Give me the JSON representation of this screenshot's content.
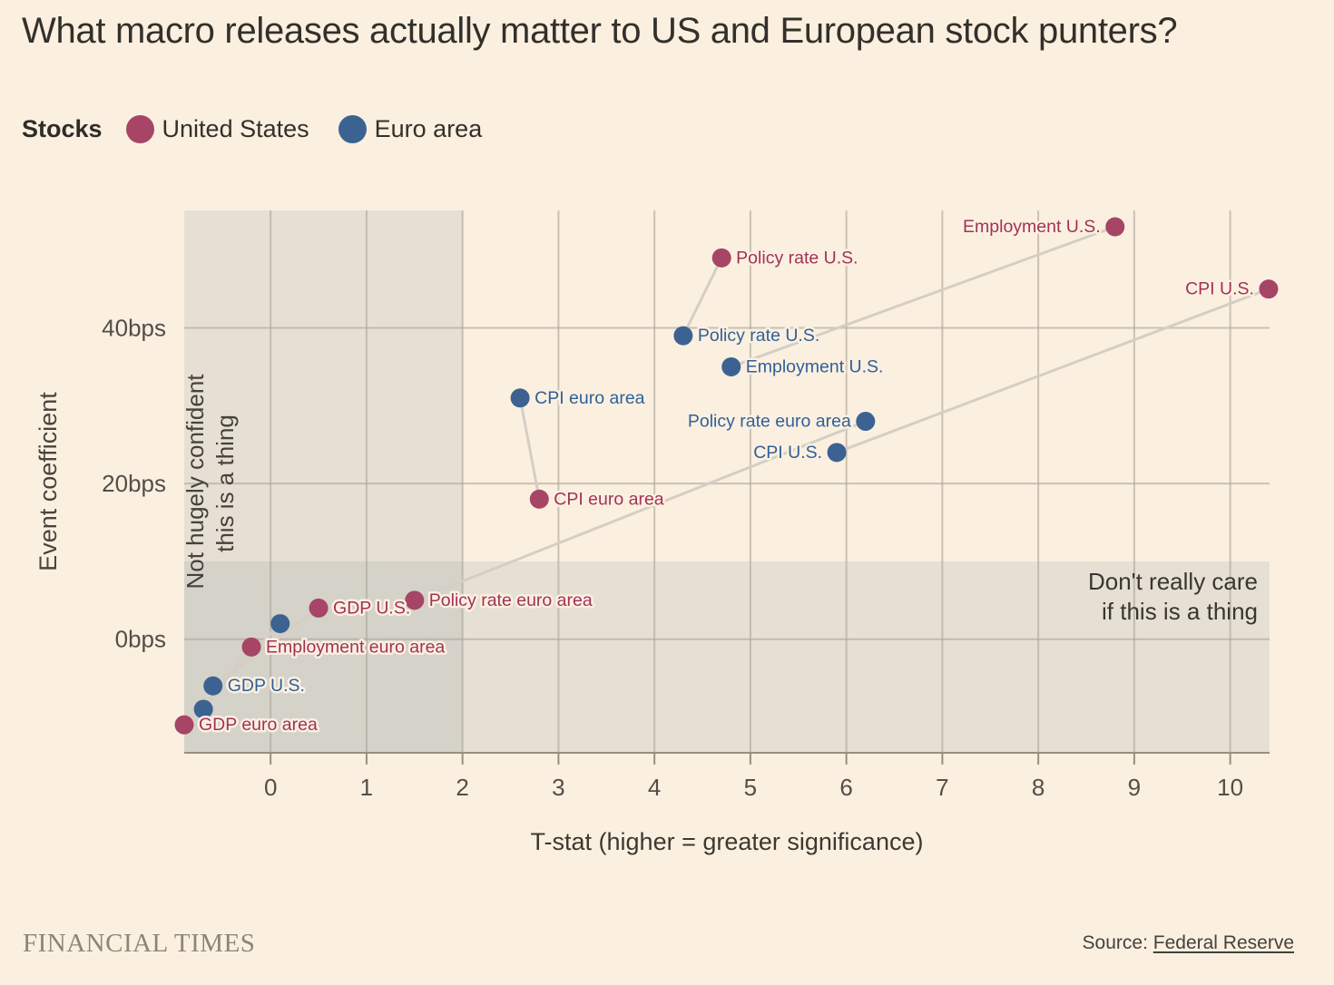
{
  "page": {
    "title": "What macro releases actually matter to US and European stock punters?"
  },
  "legend": {
    "title": "Stocks"
  },
  "footer": {
    "brand": "FINANCIAL TIMES",
    "source_prefix": "Source:",
    "source_link": "Federal Reserve"
  },
  "chart_data": {
    "type": "scatter",
    "title": "What macro releases actually matter to US and European stock punters?",
    "xlabel": "T-stat (higher = greater significance)",
    "ylabel": "Event coefficient",
    "xlim": [
      -0.9,
      10.41
    ],
    "ylim": [
      -14.6,
      55.1
    ],
    "grid": true,
    "legend_position": "top-left",
    "x_ticks": [
      0,
      1,
      2,
      3,
      4,
      5,
      6,
      7,
      8,
      9,
      10
    ],
    "y_ticks": [
      {
        "value": 0,
        "label": "0bps"
      },
      {
        "value": 20,
        "label": "20bps"
      },
      {
        "value": 40,
        "label": "40bps"
      }
    ],
    "regions": [
      {
        "id": "low-significance",
        "x_max": 2,
        "lines": [
          "Not hugely confident",
          "this is a thing"
        ]
      },
      {
        "id": "low-coefficient",
        "y_max": 10,
        "lines": [
          "Don't really care",
          "if this is a thing"
        ]
      }
    ],
    "connector_color": "#D5CEC4",
    "series": [
      {
        "name": "United States",
        "id": "us",
        "color": "#A64565",
        "label_color": "#A23259",
        "points": [
          {
            "release": "employment-us",
            "label": "Employment U.S.",
            "x": 8.8,
            "y": 53,
            "label_side": "left"
          },
          {
            "release": "policy-rate-us",
            "label": "Policy rate U.S.",
            "x": 4.7,
            "y": 49,
            "label_side": "right"
          },
          {
            "release": "cpi-us",
            "label": "CPI U.S.",
            "x": 10.4,
            "y": 45,
            "label_side": "left"
          },
          {
            "release": "cpi-euro-area",
            "label": "CPI euro area",
            "x": 2.8,
            "y": 18,
            "label_side": "right"
          },
          {
            "release": "policy-rate-euro-area",
            "label": "Policy rate euro area",
            "x": 1.5,
            "y": 5,
            "label_side": "right"
          },
          {
            "release": "gdp-us",
            "label": "GDP U.S.",
            "x": 0.5,
            "y": 4,
            "label_side": "right"
          },
          {
            "release": "employment-euro-area",
            "label": "Employment euro area",
            "x": -0.2,
            "y": -1,
            "label_side": "right"
          },
          {
            "release": "gdp-euro-area",
            "label": "GDP euro area",
            "x": -0.9,
            "y": -11,
            "label_side": "right"
          }
        ]
      },
      {
        "name": "Euro area",
        "id": "euro",
        "color": "#3C6292",
        "label_color": "#30609A",
        "points": [
          {
            "release": "policy-rate-us",
            "label": "Policy rate U.S.",
            "x": 4.3,
            "y": 39,
            "label_side": "right"
          },
          {
            "release": "employment-us",
            "label": "Employment U.S.",
            "x": 4.8,
            "y": 35,
            "label_side": "right"
          },
          {
            "release": "cpi-euro-area",
            "label": "CPI euro area",
            "x": 2.6,
            "y": 31,
            "label_side": "right"
          },
          {
            "release": "policy-rate-euro-area",
            "label": "Policy rate euro area",
            "x": 6.2,
            "y": 28,
            "label_side": "left"
          },
          {
            "release": "cpi-us",
            "label": "CPI U.S.",
            "x": 5.9,
            "y": 24,
            "label_side": "left"
          },
          {
            "release": "gdp-us",
            "label": "GDP U.S.",
            "x": -0.6,
            "y": -6,
            "label_side": "right"
          },
          {
            "release": "employment-euro-area",
            "label": "Employment euro area",
            "x": -0.7,
            "y": -9,
            "label_side": "none"
          },
          {
            "release": "gdp-euro-area",
            "label": "GDP euro area",
            "x": 0.1,
            "y": 2,
            "label_side": "none"
          }
        ]
      }
    ]
  }
}
